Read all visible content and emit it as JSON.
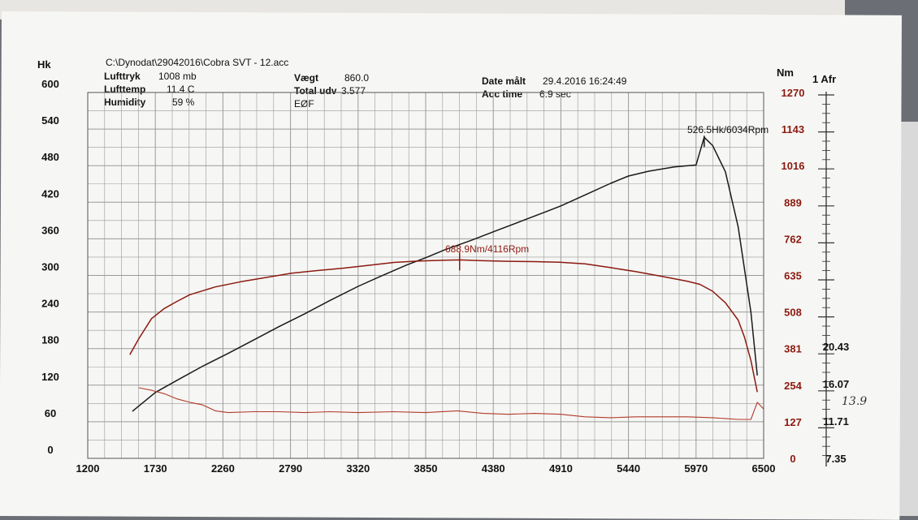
{
  "header": {
    "file": "C:\\Dynodat\\29042016\\Cobra SVT - 12.acc",
    "lufttryk_label": "Lufttryk",
    "lufttryk_value": "1008 mb",
    "lufttemp_label": "Lufttemp",
    "lufttemp_value": "11.4 C",
    "humidity_label": "Humidity",
    "humidity_value": "59 %",
    "vaegt_label": "Vægt",
    "vaegt_value": "860.0",
    "total_label": "Total udv",
    "total_value": "3.577",
    "eof_label": "EØF",
    "date_label": "Date målt",
    "date_value": "29.4.2016 16:24:49",
    "acc_label": "Acc time",
    "acc_value": "6.9 sec"
  },
  "chart_data": {
    "type": "line",
    "x_ticks": [
      "1200",
      "1730",
      "2260",
      "2790",
      "3320",
      "3850",
      "4380",
      "4910",
      "5440",
      "5970",
      "6500"
    ],
    "xlim": [
      1200,
      6500
    ],
    "left_axis": {
      "unit": "Hk",
      "ticks": [
        "0",
        "60",
        "120",
        "180",
        "240",
        "300",
        "360",
        "420",
        "480",
        "540",
        "600"
      ],
      "ylim": [
        0,
        600
      ]
    },
    "right_axis": {
      "unit": "Nm",
      "ticks": [
        "0",
        "127",
        "254",
        "381",
        "508",
        "635",
        "762",
        "889",
        "1016",
        "1143",
        "1270"
      ],
      "ylim": [
        0,
        1270
      ]
    },
    "afr_axis": {
      "unit": "1 Afr",
      "ticks": [
        "7.35",
        "11.71",
        "16.07",
        "20.43"
      ]
    },
    "colors": {
      "power": "#1a1a1a",
      "torque": "#8b1a10",
      "afr": "#b23a2a",
      "grid": "#9a9a9a"
    },
    "annotations": {
      "power_peak": "526.5Hk/6034Rpm",
      "torque_peak": "688.9Nm/4116Rpm",
      "handwritten": "13.9"
    },
    "series": [
      {
        "axis": "left",
        "x": [
          1550,
          1730,
          1900,
          2100,
          2300,
          2500,
          2700,
          2900,
          3100,
          3320,
          3500,
          3700,
          3850,
          4000,
          4200,
          4400,
          4600,
          4800,
          4910,
          5100,
          5300,
          5440,
          5600,
          5800,
          5970,
          6034,
          6100,
          6200,
          6300,
          6400,
          6450
        ],
        "values": [
          77,
          108,
          128,
          151,
          172,
          194,
          216,
          237,
          259,
          282,
          299,
          317,
          329,
          342,
          357,
          373,
          389,
          405,
          414,
          432,
          451,
          463,
          471,
          478,
          481,
          526.5,
          513,
          470,
          380,
          240,
          136
        ]
      },
      {
        "axis": "right",
        "x": [
          1530,
          1600,
          1700,
          1800,
          1900,
          2000,
          2200,
          2400,
          2600,
          2800,
          3000,
          3200,
          3400,
          3600,
          3800,
          4000,
          4116,
          4300,
          4500,
          4700,
          4900,
          5100,
          5300,
          5500,
          5700,
          5900,
          6000,
          6100,
          6200,
          6300,
          6350,
          6400,
          6450
        ],
        "values": [
          360,
          415,
          485,
          520,
          545,
          568,
          595,
          613,
          628,
          643,
          652,
          660,
          670,
          680,
          685,
          688,
          688.9,
          686,
          684,
          683,
          681,
          675,
          662,
          648,
          632,
          615,
          604,
          580,
          540,
          480,
          420,
          340,
          230
        ]
      },
      {
        "axis": "afr",
        "x": [
          1600,
          1700,
          1800,
          1900,
          2000,
          2100,
          2200,
          2300,
          2500,
          2700,
          2900,
          3100,
          3320,
          3600,
          3850,
          4100,
          4300,
          4500,
          4700,
          4910,
          5100,
          5300,
          5500,
          5700,
          5900,
          6100,
          6300,
          6400,
          6450,
          6500
        ],
        "values": [
          15.6,
          15.3,
          14.9,
          14.3,
          13.9,
          13.6,
          12.9,
          12.7,
          12.8,
          12.8,
          12.7,
          12.8,
          12.7,
          12.8,
          12.7,
          12.9,
          12.6,
          12.5,
          12.6,
          12.5,
          12.2,
          12.1,
          12.2,
          12.2,
          12.2,
          12.1,
          11.9,
          11.9,
          13.9,
          13.1
        ]
      }
    ]
  }
}
